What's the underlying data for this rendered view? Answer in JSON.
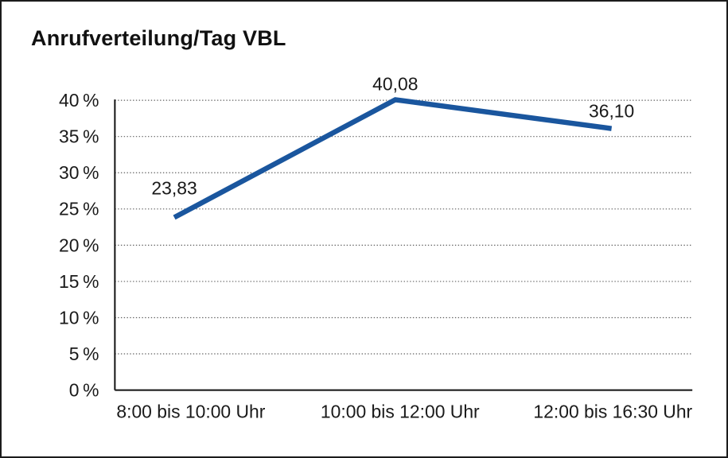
{
  "chart_data": {
    "type": "line",
    "title": "Anrufverteilung/Tag VBL",
    "categories": [
      "8:00 bis 10:00 Uhr",
      "10:00 bis 12:00 Uhr",
      "12:00 bis 16:30 Uhr"
    ],
    "values": [
      23.83,
      40.08,
      36.1
    ],
    "data_labels": [
      "23,83",
      "40,08",
      "36,10"
    ],
    "y_ticks": [
      0,
      5,
      10,
      15,
      20,
      25,
      30,
      35,
      40
    ],
    "y_tick_labels": [
      "0 %",
      "5 %",
      "10 %",
      "15 %",
      "20 %",
      "25 %",
      "30 %",
      "35 %",
      "40 %"
    ],
    "ylim": [
      0,
      40
    ],
    "xlabel": "",
    "ylabel": "",
    "legend": "none",
    "grid": "horizontal-dotted",
    "markers": "none",
    "line_color": "#1a569e",
    "text_color": "#1a1a1a",
    "background_color": "#ffffff",
    "border_color": "#1c1c1c"
  }
}
